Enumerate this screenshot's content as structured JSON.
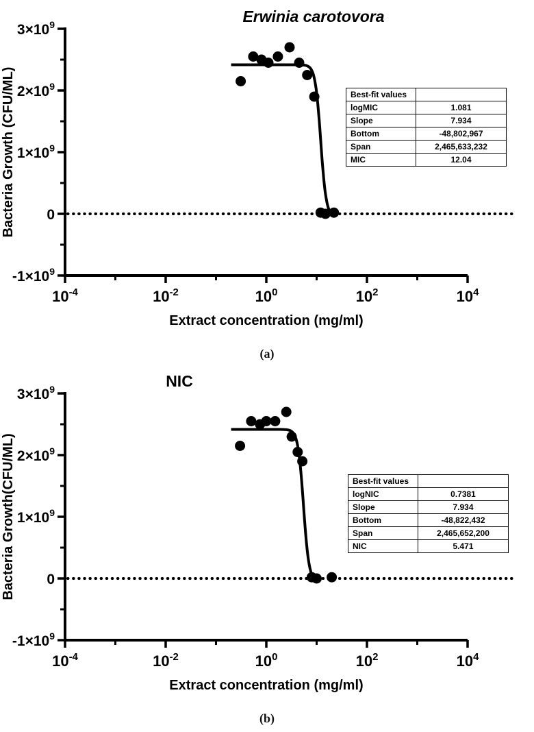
{
  "page": {
    "background": "#ffffff"
  },
  "panels": [
    {
      "caption": "(a)",
      "table": {
        "header": "Best-fit values",
        "rows": [
          {
            "label": "logMIC",
            "value": "1.081"
          },
          {
            "label": "Slope",
            "value": "7.934"
          },
          {
            "label": "Bottom",
            "value": "-48,802,967"
          },
          {
            "label": "Span",
            "value": "2,465,633,232"
          },
          {
            "label": "MIC",
            "value": "12.04"
          }
        ]
      }
    },
    {
      "caption": "(b)",
      "table": {
        "header": "Best-fit values",
        "rows": [
          {
            "label": "logNIC",
            "value": "0.7381"
          },
          {
            "label": "Slope",
            "value": "7.934"
          },
          {
            "label": "Bottom",
            "value": "-48,822,432"
          },
          {
            "label": "Span",
            "value": "2,465,652,200"
          },
          {
            "label": "NIC",
            "value": "5.471"
          }
        ]
      }
    }
  ],
  "chart_data": [
    {
      "type": "scatter",
      "title": "Erwinia carotovora",
      "title_style": "bold-italic",
      "xlabel": "Extract concentration (mg/ml)",
      "ylabel": "Bacteria Growth (CFU/ML)",
      "x_scale": "log10",
      "xlim": [
        0.0001,
        10000
      ],
      "ylim": [
        -1000000000,
        3000000000
      ],
      "x_tick_values": [
        0.0001,
        0.01,
        1,
        100,
        10000
      ],
      "x_tick_labels": [
        "10^-4",
        "10^-2",
        "10^0",
        "10^2",
        "10^4"
      ],
      "x_minor_tick_log_values": [
        -3,
        -1,
        1,
        3
      ],
      "y_tick_values": [
        -1000000000,
        0,
        1000000000,
        2000000000,
        3000000000
      ],
      "y_tick_labels": [
        "-1×10^9",
        "0",
        "1×10^9",
        "2×10^9",
        "3×10^9"
      ],
      "y_minor_tick_values": [
        -500000000,
        500000000,
        1500000000,
        2500000000
      ],
      "grid": false,
      "legend": "none",
      "marker": {
        "shape": "circle",
        "color": "#000000",
        "radius_px": 7.5
      },
      "zero_line_style": "dotted",
      "points": [
        [
          0.31,
          2150000000
        ],
        [
          0.55,
          2550000000
        ],
        [
          0.8,
          2500000000
        ],
        [
          1.1,
          2450000000
        ],
        [
          1.7,
          2550000000
        ],
        [
          2.9,
          2700000000
        ],
        [
          4.5,
          2450000000
        ],
        [
          6.5,
          2250000000
        ],
        [
          9.0,
          1900000000
        ],
        [
          12.0,
          20000000
        ],
        [
          15.0,
          0
        ],
        [
          22.0,
          20000000
        ]
      ],
      "fit": {
        "model": "four_parameter_logistic",
        "logX50": 1.081,
        "slope": 7.934,
        "bottom": -48802967,
        "span": 2465633232,
        "curve_x_range": [
          0.2,
          20
        ]
      }
    },
    {
      "type": "scatter",
      "title": "NIC",
      "title_style": "bold",
      "xlabel": "Extract concentration (mg/ml)",
      "ylabel": "Bacteria Growth(CFU/ML)",
      "x_scale": "log10",
      "xlim": [
        0.0001,
        10000
      ],
      "ylim": [
        -1000000000,
        3000000000
      ],
      "x_tick_values": [
        0.0001,
        0.01,
        1,
        100,
        10000
      ],
      "x_tick_labels": [
        "10^-4",
        "10^-2",
        "10^0",
        "10^2",
        "10^4"
      ],
      "x_minor_tick_log_values": [
        -3,
        -1,
        1,
        3
      ],
      "y_tick_values": [
        -1000000000,
        0,
        1000000000,
        2000000000,
        3000000000
      ],
      "y_tick_labels": [
        "-1×10^9",
        "0",
        "1×10^9",
        "2×10^9",
        "3×10^9"
      ],
      "y_minor_tick_values": [
        -500000000,
        500000000,
        1500000000,
        2500000000
      ],
      "grid": false,
      "legend": "none",
      "marker": {
        "shape": "circle",
        "color": "#000000",
        "radius_px": 7.5
      },
      "zero_line_style": "dotted",
      "points": [
        [
          0.3,
          2150000000
        ],
        [
          0.5,
          2550000000
        ],
        [
          0.75,
          2500000000
        ],
        [
          1.0,
          2550000000
        ],
        [
          1.5,
          2550000000
        ],
        [
          2.5,
          2700000000
        ],
        [
          3.2,
          2300000000
        ],
        [
          4.2,
          2050000000
        ],
        [
          5.2,
          1900000000
        ],
        [
          8.0,
          20000000
        ],
        [
          10.0,
          0
        ],
        [
          20.0,
          20000000
        ]
      ],
      "fit": {
        "model": "four_parameter_logistic",
        "logX50": 0.7381,
        "slope": 7.934,
        "bottom": -48822432,
        "span": 2465652200,
        "curve_x_range": [
          0.2,
          11
        ]
      }
    }
  ]
}
